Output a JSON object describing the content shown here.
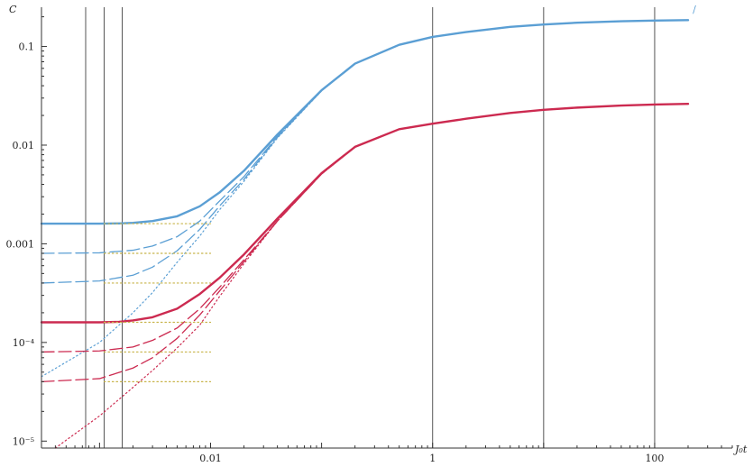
{
  "chart_data": {
    "type": "line",
    "title": "",
    "xlabel": "J₀t",
    "ylabel": "C",
    "xscale": "log",
    "yscale": "log",
    "xlim": [
      0.0003,
      500
    ],
    "ylim": [
      8.5e-06,
      0.25
    ],
    "grid": "vertical lines only",
    "x_tick_labels": [
      {
        "value": 0.01,
        "label": "0.01"
      },
      {
        "value": 1,
        "label": "1"
      },
      {
        "value": 100,
        "label": "100"
      }
    ],
    "y_tick_labels": [
      {
        "value": 0.1,
        "label": "0.1"
      },
      {
        "value": 0.01,
        "label": "0.01"
      },
      {
        "value": 0.001,
        "label": "0.001"
      },
      {
        "value": 0.0001,
        "label": "10⁻⁴"
      },
      {
        "value": 1e-05,
        "label": "10⁻⁵"
      }
    ],
    "vertical_gridlines_x": [
      0.00075,
      0.0011,
      0.0016,
      1,
      10,
      100
    ],
    "annotations": [
      {
        "text": "/",
        "x": 220,
        "y": 0.22
      }
    ],
    "colors": {
      "blue": "#5b9fd4",
      "red": "#cc2a50",
      "olive": "#c8b44a",
      "grid": "#555555"
    },
    "series": [
      {
        "color": "blue",
        "style": "solid",
        "x": [
          0.0003,
          0.001,
          0.0015,
          0.002,
          0.003,
          0.005,
          0.008,
          0.012,
          0.02,
          0.04,
          0.1,
          0.2,
          0.5,
          1,
          2,
          5,
          10,
          20,
          50,
          100,
          200
        ],
        "y": [
          0.0016,
          0.0016,
          0.00161,
          0.00163,
          0.0017,
          0.0019,
          0.0024,
          0.0033,
          0.0055,
          0.0128,
          0.036,
          0.067,
          0.104,
          0.125,
          0.14,
          0.158,
          0.167,
          0.174,
          0.18,
          0.183,
          0.185
        ]
      },
      {
        "color": "blue",
        "style": "dashed",
        "x": [
          0.0003,
          0.001,
          0.002,
          0.003,
          0.005,
          0.008,
          0.012,
          0.02,
          0.04,
          0.1,
          0.2,
          0.5,
          1,
          2,
          5,
          10,
          20,
          50,
          100,
          200
        ],
        "y": [
          0.0008,
          0.00081,
          0.00086,
          0.00095,
          0.00118,
          0.0017,
          0.0027,
          0.0048,
          0.0122,
          0.0357,
          0.067,
          0.104,
          0.125,
          0.14,
          0.158,
          0.167,
          0.174,
          0.18,
          0.183,
          0.185
        ]
      },
      {
        "color": "blue",
        "style": "dashed",
        "x": [
          0.0003,
          0.001,
          0.002,
          0.003,
          0.005,
          0.008,
          0.012,
          0.02,
          0.04,
          0.1,
          0.2,
          0.5,
          1,
          2,
          5,
          10,
          20,
          50,
          100,
          200
        ],
        "y": [
          0.0004,
          0.00042,
          0.00048,
          0.00058,
          0.00085,
          0.0014,
          0.0024,
          0.0045,
          0.012,
          0.0356,
          0.067,
          0.104,
          0.125,
          0.14,
          0.158,
          0.167,
          0.174,
          0.18,
          0.183,
          0.185
        ]
      },
      {
        "color": "blue",
        "style": "dotted",
        "x": [
          0.0003,
          0.001,
          0.002,
          0.003,
          0.005,
          0.008,
          0.012,
          0.02,
          0.04,
          0.1,
          0.2,
          0.5,
          1,
          2,
          5,
          10,
          20,
          50,
          100,
          200
        ],
        "y": [
          4.5e-05,
          0.0001,
          0.0002,
          0.00032,
          0.00065,
          0.0012,
          0.0022,
          0.0043,
          0.0118,
          0.0355,
          0.067,
          0.104,
          0.125,
          0.14,
          0.158,
          0.167,
          0.174,
          0.18,
          0.183,
          0.185
        ]
      },
      {
        "color": "red",
        "style": "solid",
        "x": [
          0.0003,
          0.001,
          0.0015,
          0.002,
          0.003,
          0.005,
          0.008,
          0.012,
          0.02,
          0.04,
          0.1,
          0.2,
          0.5,
          1,
          2,
          5,
          10,
          20,
          50,
          100,
          200
        ],
        "y": [
          0.00016,
          0.00016,
          0.000162,
          0.000167,
          0.00018,
          0.00022,
          0.00031,
          0.00045,
          0.00078,
          0.0018,
          0.0052,
          0.0096,
          0.0145,
          0.0165,
          0.0185,
          0.0212,
          0.0228,
          0.024,
          0.0252,
          0.0258,
          0.0262
        ]
      },
      {
        "color": "red",
        "style": "dashed",
        "x": [
          0.0003,
          0.001,
          0.002,
          0.003,
          0.005,
          0.008,
          0.012,
          0.02,
          0.04,
          0.1,
          0.2,
          0.5,
          1,
          2,
          5,
          10,
          20,
          50,
          100,
          200
        ],
        "y": [
          8e-05,
          8.2e-05,
          9e-05,
          0.000105,
          0.00014,
          0.00022,
          0.00036,
          0.00069,
          0.0017,
          0.0051,
          0.0096,
          0.0145,
          0.0165,
          0.0185,
          0.0212,
          0.0228,
          0.024,
          0.0252,
          0.0258,
          0.0262
        ]
      },
      {
        "color": "red",
        "style": "dashed",
        "x": [
          0.0003,
          0.001,
          0.002,
          0.003,
          0.005,
          0.008,
          0.012,
          0.02,
          0.04,
          0.1,
          0.2,
          0.5,
          1,
          2,
          5,
          10,
          20,
          50,
          100,
          200
        ],
        "y": [
          4e-05,
          4.3e-05,
          5.5e-05,
          7e-05,
          0.00011,
          0.00019,
          0.00033,
          0.00066,
          0.0017,
          0.0051,
          0.0096,
          0.0145,
          0.0165,
          0.0185,
          0.0212,
          0.0228,
          0.024,
          0.0252,
          0.0258,
          0.0262
        ]
      },
      {
        "color": "red",
        "style": "dotted",
        "x": [
          0.0004,
          0.001,
          0.002,
          0.003,
          0.005,
          0.008,
          0.012,
          0.02,
          0.04,
          0.1,
          0.2,
          0.5,
          1,
          2,
          5,
          10,
          20,
          50,
          100,
          200
        ],
        "y": [
          8.5e-06,
          1.8e-05,
          3.5e-05,
          5.2e-05,
          8.8e-05,
          0.00015,
          0.00029,
          0.00063,
          0.0017,
          0.0051,
          0.0096,
          0.0145,
          0.0165,
          0.0185,
          0.0212,
          0.0228,
          0.024,
          0.0252,
          0.0258,
          0.0262
        ]
      },
      {
        "color": "olive",
        "style": "dotted",
        "x": [
          0.0011,
          0.01
        ],
        "y": [
          0.0016,
          0.0016
        ]
      },
      {
        "color": "olive",
        "style": "dotted",
        "x": [
          0.0011,
          0.01
        ],
        "y": [
          0.0008,
          0.0008
        ]
      },
      {
        "color": "olive",
        "style": "dotted",
        "x": [
          0.0011,
          0.01
        ],
        "y": [
          0.0004,
          0.0004
        ]
      },
      {
        "color": "olive",
        "style": "dotted",
        "x": [
          0.0011,
          0.01
        ],
        "y": [
          0.00016,
          0.00016
        ]
      },
      {
        "color": "olive",
        "style": "dotted",
        "x": [
          0.0011,
          0.01
        ],
        "y": [
          8e-05,
          8e-05
        ]
      },
      {
        "color": "olive",
        "style": "dotted",
        "x": [
          0.0011,
          0.01
        ],
        "y": [
          4e-05,
          4e-05
        ]
      }
    ]
  }
}
